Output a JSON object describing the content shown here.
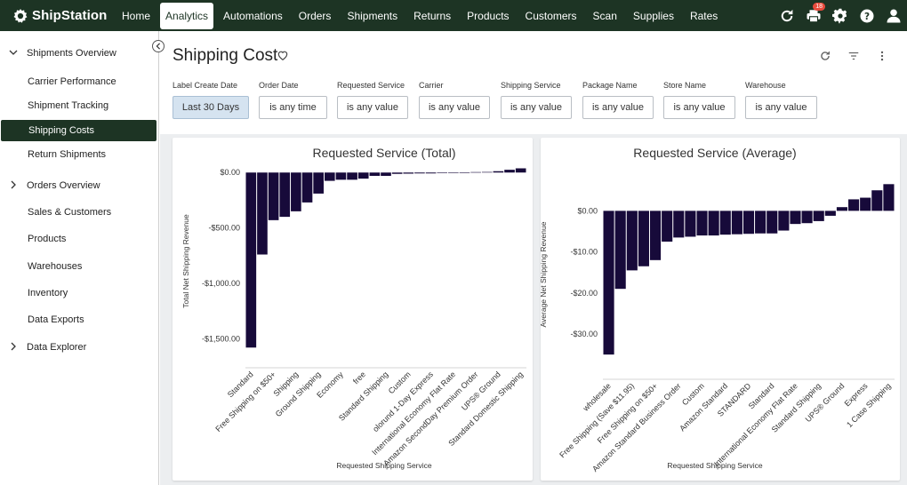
{
  "app": {
    "brand": "ShipStation"
  },
  "nav": {
    "items": [
      "Home",
      "Analytics",
      "Automations",
      "Orders",
      "Shipments",
      "Returns",
      "Products",
      "Customers",
      "Scan",
      "Supplies",
      "Rates"
    ],
    "active_index": 1,
    "icons": [
      "refresh-icon",
      "printer-icon",
      "gear-icon",
      "help-icon",
      "user-icon"
    ],
    "printer_badge": "18"
  },
  "sidebar": {
    "shipments_overview": "Shipments Overview",
    "carrier_performance": "Carrier Performance",
    "shipment_tracking": "Shipment Tracking",
    "shipping_costs": "Shipping Costs",
    "return_shipments": "Return Shipments",
    "orders_overview": "Orders Overview",
    "sales_customers": "Sales & Customers",
    "products": "Products",
    "warehouses": "Warehouses",
    "inventory": "Inventory",
    "data_exports": "Data Exports",
    "data_explorer": "Data Explorer"
  },
  "page": {
    "title": "Shipping Cost"
  },
  "filters": [
    {
      "label": "Label Create Date",
      "value": "Last 30 Days"
    },
    {
      "label": "Order Date",
      "value": "is any time"
    },
    {
      "label": "Requested Service",
      "value": "is any value"
    },
    {
      "label": "Carrier",
      "value": "is any value"
    },
    {
      "label": "Shipping Service",
      "value": "is any value"
    },
    {
      "label": "Package Name",
      "value": "is any value"
    },
    {
      "label": "Store Name",
      "value": "is any value"
    },
    {
      "label": "Warehouse",
      "value": "is any value"
    }
  ],
  "colors": {
    "nav_bg": "#1d3424",
    "bar": "#170a3a",
    "selected_filter": "#d5e3f0",
    "badge": "#e84b3c"
  },
  "chart_data": [
    {
      "type": "bar",
      "title": "Requested Service (Total)",
      "xlabel": "Requested Shipping Service",
      "ylabel": "Total Net Shipping Revenue",
      "ylim": [
        -1650,
        50
      ],
      "yticks": [
        0,
        -500,
        -1000,
        -1500
      ],
      "ytick_labels": [
        "$0.00",
        "-$500.00",
        "-$1,000.00",
        "-$1,500.00"
      ],
      "grid": false,
      "categories": [
        "Standard",
        "",
        "Free Shipping on $50+",
        "",
        "Shipping",
        "",
        "Ground Shipping",
        "",
        "Economy",
        "",
        "free",
        "",
        "Standard Shipping",
        "",
        "Custom",
        "",
        "olorund 1-Day Express",
        "",
        "International Economy Flat Rate",
        "",
        "Amazon SecondDay Premium Order",
        "",
        "UPS® Ground",
        "",
        "Standard Domestic Shipping"
      ],
      "values": [
        -1580,
        -740,
        -430,
        -400,
        -350,
        -270,
        -190,
        -75,
        -65,
        -65,
        -55,
        -30,
        -30,
        -12,
        -10,
        -8,
        -8,
        -5,
        -2,
        0,
        4,
        5,
        12,
        25,
        38
      ]
    },
    {
      "type": "bar",
      "title": "Requested Service (Average)",
      "xlabel": "Requested Shipping Service",
      "ylabel": "Average Net Shipping Revenue",
      "ylim": [
        -38,
        7
      ],
      "yticks": [
        0,
        -10,
        -20,
        -30
      ],
      "ytick_labels": [
        "$0.00",
        "-$10.00",
        "-$20.00",
        "-$30.00"
      ],
      "grid": false,
      "categories": [
        "wholesale",
        "",
        "Free Shipping (Save $11.95)",
        "",
        "Free Shipping on $50+",
        "",
        "Amazon Standard Business Order",
        "",
        "Custom",
        "",
        "Amazon Standard",
        "",
        "STANDARD",
        "",
        "Standard",
        "",
        "International Economy Flat Rate",
        "",
        "Standard Shipping",
        "",
        "UPS® Ground",
        "",
        "Express",
        "",
        "1 Case Shipping"
      ],
      "values": [
        -35,
        -19,
        -14.5,
        -13.5,
        -12,
        -7.5,
        -6.5,
        -6.3,
        -6,
        -6,
        -5.8,
        -5.7,
        -5.6,
        -5.5,
        -5.5,
        -4.8,
        -3.2,
        -3,
        -2.5,
        -1.2,
        0.9,
        2.8,
        3.2,
        5,
        6.5
      ]
    }
  ]
}
